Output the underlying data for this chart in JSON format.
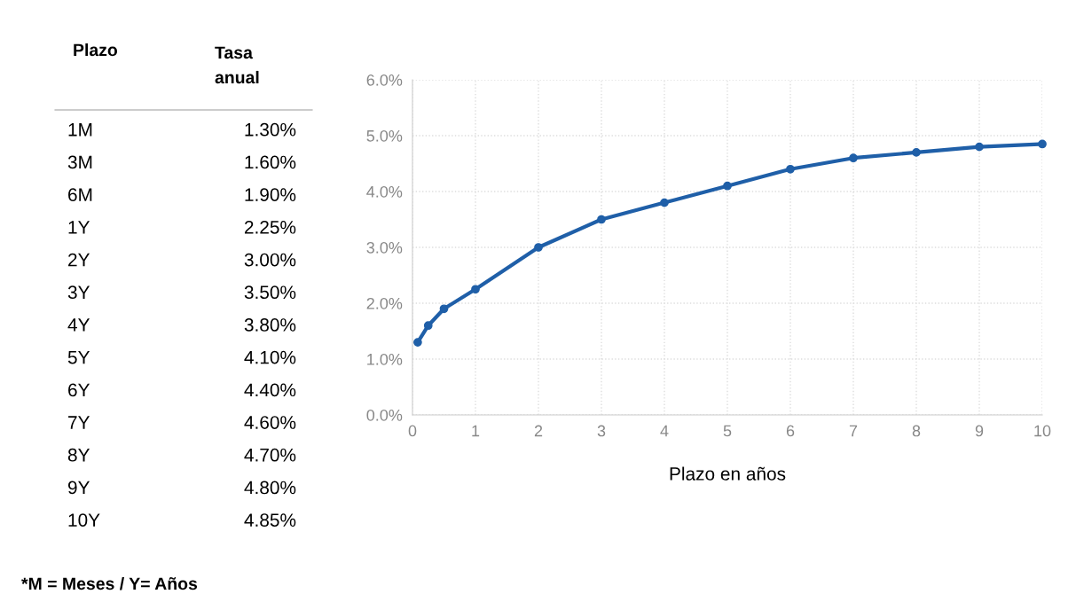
{
  "chart_data": {
    "type": "line",
    "xlabel": "Plazo en años",
    "annotations": [
      "Plazo",
      "Tasa anual",
      "1M",
      "1.30%",
      "3M",
      "1.60%",
      "6M",
      "1.90%",
      "1Y",
      "2.25%",
      "2Y",
      "3.00%",
      "3Y",
      "3.50%",
      "4Y",
      "3.80%",
      "5Y",
      "4.10%",
      "6Y",
      "4.40%",
      "7Y",
      "4.60%",
      "8Y",
      "4.70%",
      "9Y",
      "4.80%",
      "10Y",
      "4.85%",
      "*M = Meses / Y= Años"
    ],
    "x": [
      0.083,
      0.25,
      0.5,
      1,
      2,
      3,
      4,
      5,
      6,
      7,
      8,
      9,
      10
    ],
    "series": [
      {
        "color": "#1f5fa8",
        "values": [
          1.3,
          1.6,
          1.9,
          2.25,
          3.0,
          3.5,
          3.8,
          4.1,
          4.4,
          4.6,
          4.7,
          4.8,
          4.85
        ]
      }
    ],
    "xlim": [
      0,
      10
    ],
    "xticks": [
      0,
      1,
      2,
      3,
      4,
      5,
      6,
      7,
      8,
      9,
      10
    ],
    "ylim": [
      0,
      6
    ],
    "yticks": [
      {
        "value": 0,
        "label": "0.0%"
      },
      {
        "value": 1,
        "label": "1.0%"
      },
      {
        "value": 2,
        "label": "2.0%"
      },
      {
        "value": 3,
        "label": "3.0%"
      },
      {
        "value": 4,
        "label": "4.0%"
      },
      {
        "value": 5,
        "label": "5.0%"
      },
      {
        "value": 6,
        "label": "6.0%"
      }
    ],
    "grid": true,
    "marker": "circle",
    "line_style": "solid",
    "legend": false
  }
}
